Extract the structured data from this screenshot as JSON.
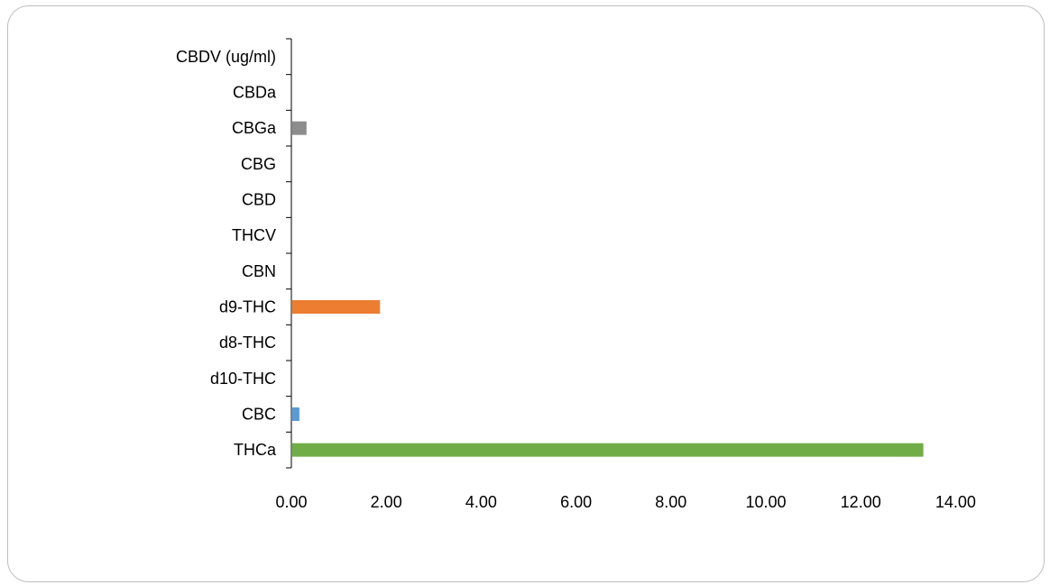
{
  "chart_data": {
    "type": "bar",
    "orientation": "horizontal",
    "categories": [
      "CBDV (ug/ml)",
      "CBDa",
      "CBGa",
      "CBG",
      "CBD",
      "THCV",
      "CBN",
      "d9-THC",
      "d8-THC",
      "d10-THC",
      "CBC",
      "THCa"
    ],
    "values": [
      0,
      0,
      0.3,
      0,
      0,
      0,
      0,
      1.85,
      0,
      0,
      0.15,
      13.3
    ],
    "colors": [
      "#7f7f7f",
      "#7f7f7f",
      "#8c8c8c",
      "#7f7f7f",
      "#7f7f7f",
      "#ed7d31",
      "#ed7d31",
      "#ed7d31",
      "#ed7d31",
      "#5b9bd5",
      "#5b9bd5",
      "#70ad47"
    ],
    "x_ticks": [
      "0.00",
      "2.00",
      "4.00",
      "6.00",
      "8.00",
      "10.00",
      "12.00",
      "14.00"
    ],
    "xlim": [
      0,
      14
    ],
    "grid": false,
    "legend": "none",
    "title": "",
    "xlabel": "",
    "ylabel": ""
  }
}
